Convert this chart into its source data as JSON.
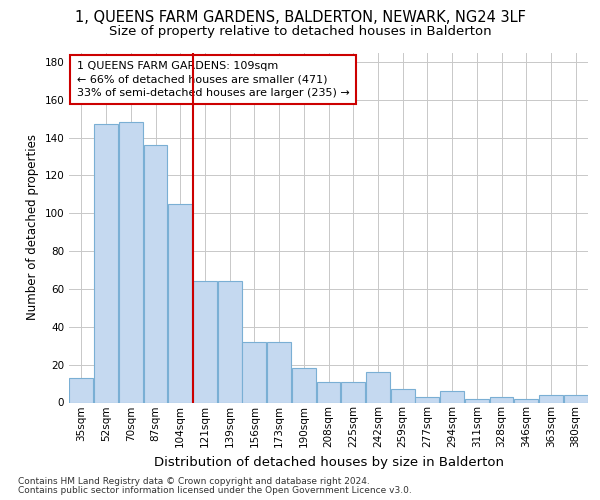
{
  "title": "1, QUEENS FARM GARDENS, BALDERTON, NEWARK, NG24 3LF",
  "subtitle": "Size of property relative to detached houses in Balderton",
  "xlabel": "Distribution of detached houses by size in Balderton",
  "ylabel": "Number of detached properties",
  "footnote1": "Contains HM Land Registry data © Crown copyright and database right 2024.",
  "footnote2": "Contains public sector information licensed under the Open Government Licence v3.0.",
  "annotation_line1": "1 QUEENS FARM GARDENS: 109sqm",
  "annotation_line2": "← 66% of detached houses are smaller (471)",
  "annotation_line3": "33% of semi-detached houses are larger (235) →",
  "vline_x": 4.5,
  "categories": [
    "35sqm",
    "52sqm",
    "70sqm",
    "87sqm",
    "104sqm",
    "121sqm",
    "139sqm",
    "156sqm",
    "173sqm",
    "190sqm",
    "208sqm",
    "225sqm",
    "242sqm",
    "259sqm",
    "277sqm",
    "294sqm",
    "311sqm",
    "328sqm",
    "346sqm",
    "363sqm",
    "380sqm"
  ],
  "bar_values": [
    13,
    147,
    148,
    136,
    105,
    64,
    64,
    32,
    32,
    18,
    11,
    11,
    16,
    7,
    3,
    6,
    2,
    3,
    2,
    4,
    4
  ],
  "bar_color": "#c5d9f0",
  "bar_edge_color": "#7aafd4",
  "vline_color": "#cc0000",
  "grid_color": "#c8c8c8",
  "bg_color": "#ffffff",
  "ylim": [
    0,
    185
  ],
  "yticks": [
    0,
    20,
    40,
    60,
    80,
    100,
    120,
    140,
    160,
    180
  ],
  "title_fontsize": 10.5,
  "subtitle_fontsize": 9.5,
  "xlabel_fontsize": 9.5,
  "ylabel_fontsize": 8.5,
  "tick_fontsize": 7.5,
  "annot_fontsize": 8.0,
  "footnote_fontsize": 6.5
}
